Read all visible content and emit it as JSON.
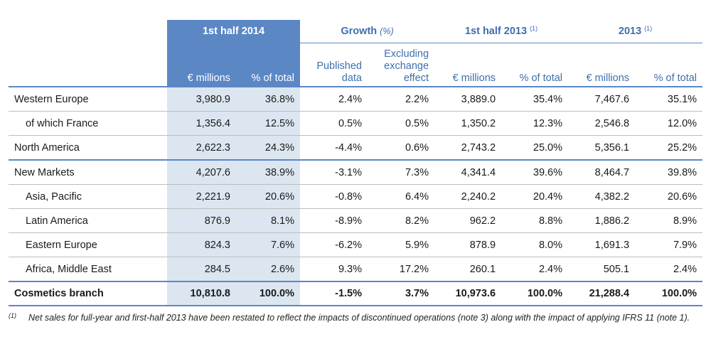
{
  "header": {
    "group1": "1st half 2014",
    "group2_title": "Growth",
    "group2_unit": "(%)",
    "group3_title": "1st half 2013",
    "group3_note": "(1)",
    "group4_title": "2013",
    "group4_note": "(1)",
    "columns": [
      "€ millions",
      "% of total",
      "Published data",
      "Excluding exchange effect",
      "€ millions",
      "% of total",
      "€ millions",
      "% of total"
    ]
  },
  "rows": [
    {
      "label": "Western Europe",
      "values": [
        "3,980.9",
        "36.8%",
        "2.4%",
        "2.2%",
        "3,889.0",
        "35.4%",
        "7,467.6",
        "35.1%"
      ]
    },
    {
      "label": "of which France",
      "values": [
        "1,356.4",
        "12.5%",
        "0.5%",
        "0.5%",
        "1,350.2",
        "12.3%",
        "2,546.8",
        "12.0%"
      ]
    },
    {
      "label": "North America",
      "values": [
        "2,622.3",
        "24.3%",
        "-4.4%",
        "0.6%",
        "2,743.2",
        "25.0%",
        "5,356.1",
        "25.2%"
      ]
    },
    {
      "label": "New Markets",
      "values": [
        "4,207.6",
        "38.9%",
        "-3.1%",
        "7.3%",
        "4,341.4",
        "39.6%",
        "8,464.7",
        "39.8%"
      ]
    },
    {
      "label": "Asia, Pacific",
      "values": [
        "2,221.9",
        "20.6%",
        "-0.8%",
        "6.4%",
        "2,240.2",
        "20.4%",
        "4,382.2",
        "20.6%"
      ]
    },
    {
      "label": "Latin America",
      "values": [
        "876.9",
        "8.1%",
        "-8.9%",
        "8.2%",
        "962.2",
        "8.8%",
        "1,886.2",
        "8.9%"
      ]
    },
    {
      "label": "Eastern Europe",
      "values": [
        "824.3",
        "7.6%",
        "-6.2%",
        "5.9%",
        "878.9",
        "8.0%",
        "1,691.3",
        "7.9%"
      ]
    },
    {
      "label": "Africa, Middle East",
      "values": [
        "284.5",
        "2.6%",
        "9.3%",
        "17.2%",
        "260.1",
        "2.4%",
        "505.1",
        "2.4%"
      ]
    },
    {
      "label": "Cosmetics branch",
      "values": [
        "10,810.8",
        "100.0%",
        "-1.5%",
        "3.7%",
        "10,973.6",
        "100.0%",
        "21,288.4",
        "100.0%"
      ]
    }
  ],
  "footnote": {
    "marker": "(1)",
    "text": "Net sales for full-year and first-half 2013 have been restated to reflect the impacts of discontinued operations (note 3) along with the impact of applying IFRS 11 (note 1)."
  },
  "colors": {
    "highlight_header": "#5b87c5",
    "highlight_cell": "#dce6f1",
    "header_text": "#3f6fae",
    "rule": "#5b87c5"
  }
}
